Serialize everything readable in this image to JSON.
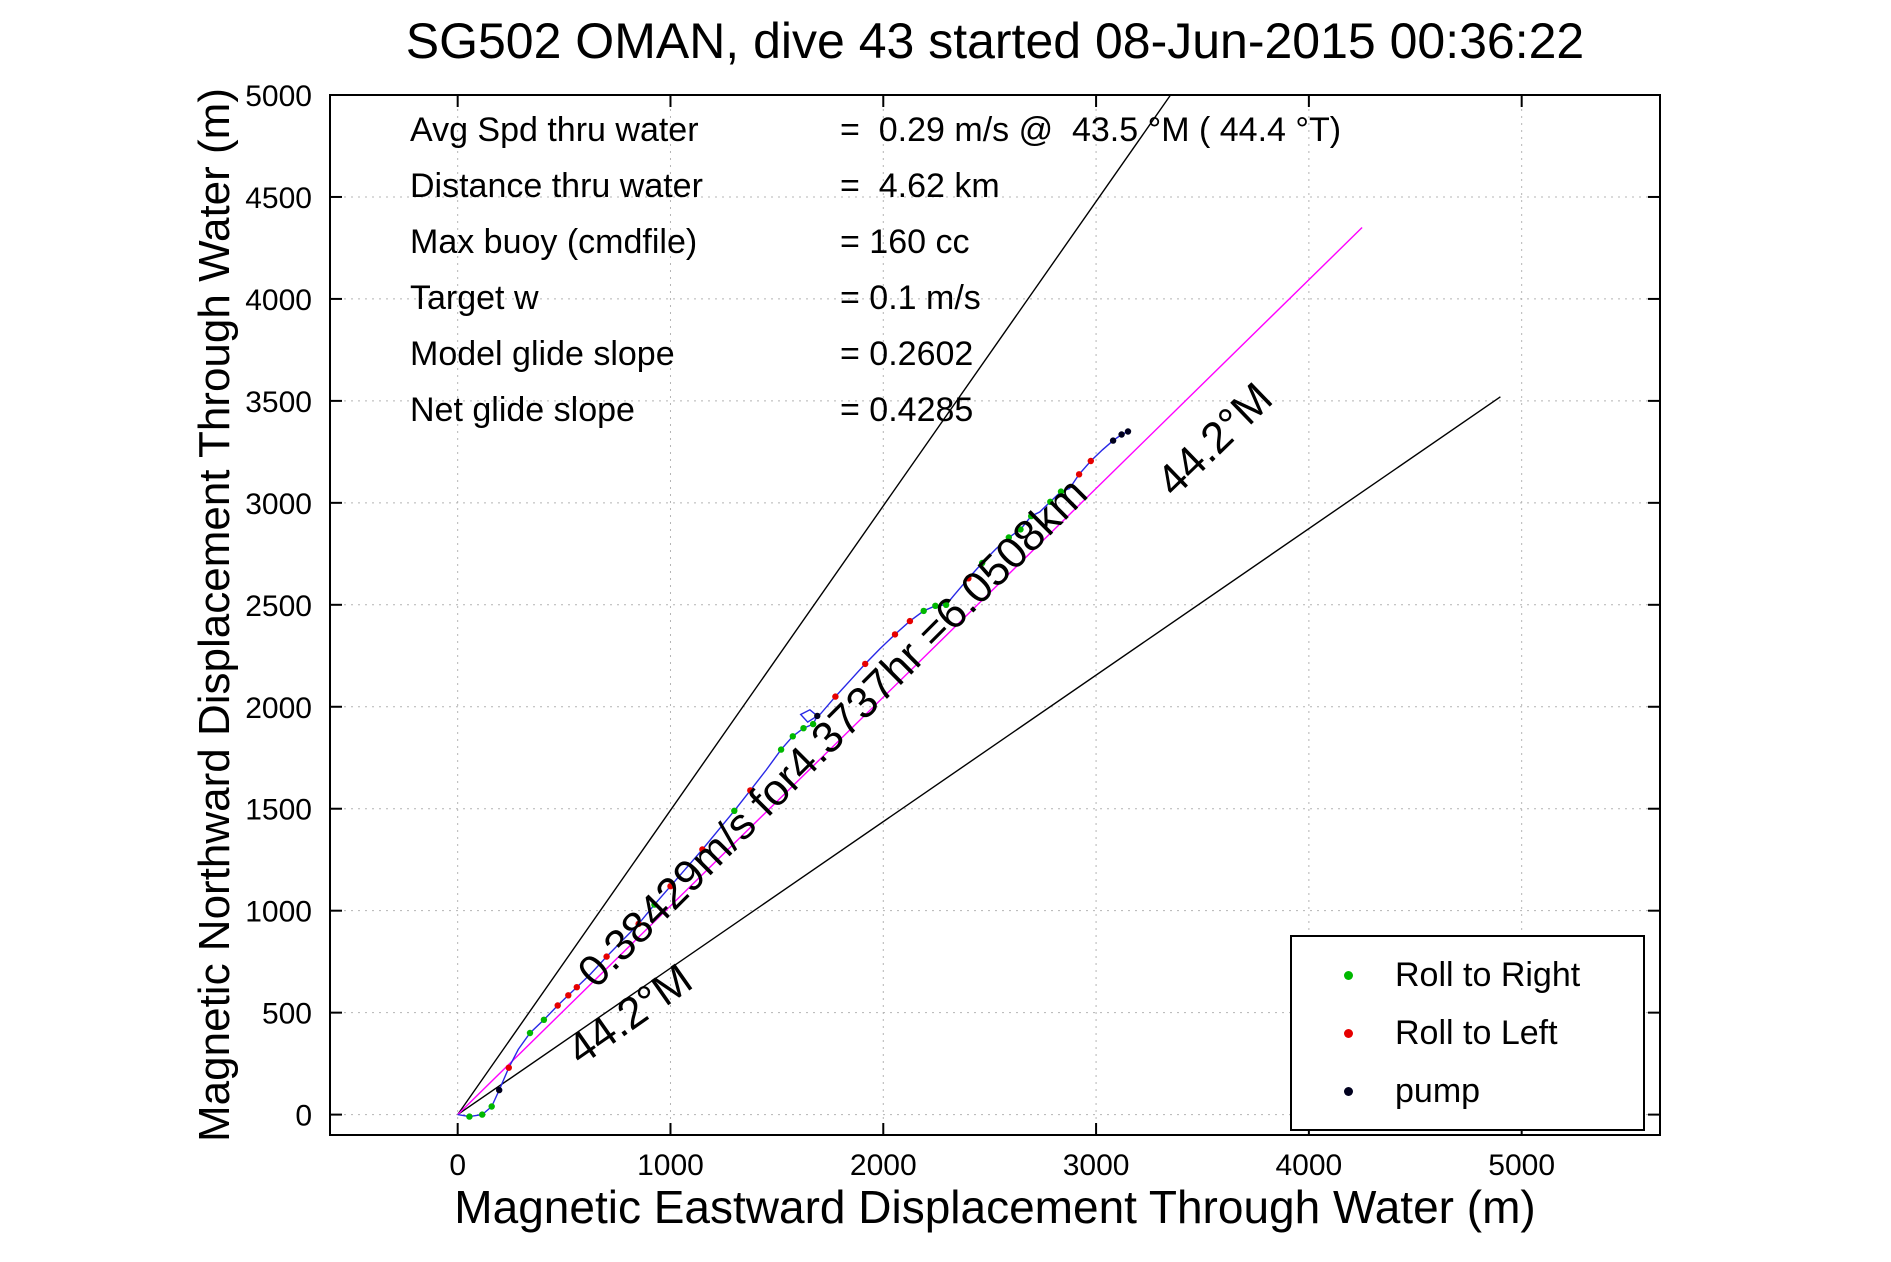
{
  "chart_data": {
    "type": "line",
    "title": "SG502 OMAN, dive 43 started 08-Jun-2015 00:36:22",
    "xlabel": "Magnetic Eastward Displacement Through Water (m)",
    "ylabel": "Magnetic Northward Displacement Through Water (m)",
    "xlim": [
      -600,
      5650
    ],
    "ylim": [
      -100,
      5000
    ],
    "xticks": [
      0,
      1000,
      2000,
      3000,
      4000,
      5000
    ],
    "yticks": [
      0,
      500,
      1000,
      1500,
      2000,
      2500,
      3000,
      3500,
      4000,
      4500,
      5000
    ],
    "grid": true,
    "stats": [
      {
        "label": "Avg Spd thru water",
        "value": "=  0.29 m/s @  43.5 °M ( 44.4 °T)"
      },
      {
        "label": "Distance thru water",
        "value": "=  4.62 km"
      },
      {
        "label": "Max buoy (cmdfile)",
        "value": "= 160 cc"
      },
      {
        "label": "Target w",
        "value": "= 0.1 m/s"
      },
      {
        "label": "Model glide slope",
        "value": "= 0.2602"
      },
      {
        "label": "Net glide slope",
        "value": "= 0.4285"
      }
    ],
    "annotations": [
      {
        "text": "0.38429m/s for4.3737hr =6.0508km",
        "rotation_deg": -45
      },
      {
        "text": "44.2°M",
        "rotation_deg": -35
      },
      {
        "text": "44.2°M",
        "rotation_deg": -44
      }
    ],
    "legend": {
      "position": "bottom-right",
      "items": [
        {
          "label": "Roll to Right",
          "color": "#00b800"
        },
        {
          "label": "Roll to Left",
          "color": "#e60000"
        },
        {
          "label": "pump",
          "color": "#00001e"
        }
      ]
    },
    "reference_lines": [
      {
        "name": "bearing-fan-upper",
        "x1": 0,
        "y1": 0,
        "x2": 3350,
        "y2": 5000,
        "color": "#000000"
      },
      {
        "name": "bearing-fan-lower",
        "x1": 0,
        "y1": 0,
        "x2": 4900,
        "y2": 3520,
        "color": "#000000"
      },
      {
        "name": "commanded-bearing-line",
        "x1": 0,
        "y1": 0,
        "x2": 4250,
        "y2": 4350,
        "color": "#ff00ff"
      }
    ],
    "track": {
      "color": "#2828e6",
      "points": [
        [
          0,
          0
        ],
        [
          55,
          -10
        ],
        [
          115,
          0
        ],
        [
          160,
          40
        ],
        [
          195,
          120
        ],
        [
          240,
          230
        ],
        [
          285,
          320
        ],
        [
          340,
          400
        ],
        [
          405,
          465
        ],
        [
          470,
          535
        ],
        [
          520,
          585
        ],
        [
          560,
          625
        ],
        [
          625,
          690
        ],
        [
          700,
          775
        ],
        [
          775,
          855
        ],
        [
          850,
          935
        ],
        [
          925,
          1030
        ],
        [
          1000,
          1120
        ],
        [
          1075,
          1210
        ],
        [
          1150,
          1300
        ],
        [
          1225,
          1395
        ],
        [
          1300,
          1490
        ],
        [
          1375,
          1590
        ],
        [
          1450,
          1690
        ],
        [
          1520,
          1790
        ],
        [
          1575,
          1855
        ],
        [
          1625,
          1895
        ],
        [
          1670,
          1915
        ],
        [
          1690,
          1955
        ],
        [
          1655,
          1985
        ],
        [
          1612,
          1962
        ],
        [
          1645,
          1925
        ],
        [
          1705,
          1965
        ],
        [
          1775,
          2050
        ],
        [
          1845,
          2130
        ],
        [
          1915,
          2210
        ],
        [
          1985,
          2285
        ],
        [
          2055,
          2355
        ],
        [
          2125,
          2420
        ],
        [
          2190,
          2470
        ],
        [
          2245,
          2495
        ],
        [
          2295,
          2500
        ],
        [
          2335,
          2550
        ],
        [
          2400,
          2630
        ],
        [
          2465,
          2705
        ],
        [
          2530,
          2775
        ],
        [
          2590,
          2830
        ],
        [
          2645,
          2870
        ],
        [
          2695,
          2935
        ],
        [
          2735,
          2955
        ],
        [
          2785,
          3005
        ],
        [
          2835,
          3055
        ],
        [
          2875,
          3070
        ],
        [
          2920,
          3140
        ],
        [
          2975,
          3205
        ],
        [
          3030,
          3260
        ],
        [
          3080,
          3305
        ],
        [
          3120,
          3335
        ],
        [
          3150,
          3350
        ]
      ]
    },
    "markers": [
      {
        "name": "roll-right",
        "color": "#00b800",
        "points": [
          [
            55,
            -10
          ],
          [
            115,
            0
          ],
          [
            160,
            40
          ],
          [
            340,
            400
          ],
          [
            405,
            465
          ],
          [
            925,
            1030
          ],
          [
            1300,
            1490
          ],
          [
            1520,
            1790
          ],
          [
            1575,
            1855
          ],
          [
            1625,
            1895
          ],
          [
            1670,
            1915
          ],
          [
            2190,
            2470
          ],
          [
            2245,
            2495
          ],
          [
            2295,
            2500
          ],
          [
            2465,
            2705
          ],
          [
            2590,
            2830
          ],
          [
            2645,
            2870
          ],
          [
            2695,
            2935
          ],
          [
            2785,
            3005
          ],
          [
            2835,
            3055
          ]
        ]
      },
      {
        "name": "roll-left",
        "color": "#e60000",
        "points": [
          [
            240,
            230
          ],
          [
            470,
            535
          ],
          [
            520,
            585
          ],
          [
            560,
            625
          ],
          [
            700,
            775
          ],
          [
            850,
            935
          ],
          [
            1000,
            1120
          ],
          [
            1150,
            1300
          ],
          [
            1375,
            1590
          ],
          [
            1775,
            2050
          ],
          [
            1915,
            2210
          ],
          [
            2055,
            2355
          ],
          [
            2125,
            2420
          ],
          [
            2400,
            2630
          ],
          [
            2920,
            3140
          ],
          [
            2975,
            3205
          ]
        ]
      },
      {
        "name": "pump",
        "color": "#00001e",
        "points": [
          [
            195,
            120
          ],
          [
            1690,
            1955
          ],
          [
            3080,
            3305
          ],
          [
            3120,
            3335
          ],
          [
            3150,
            3350
          ]
        ]
      }
    ]
  }
}
